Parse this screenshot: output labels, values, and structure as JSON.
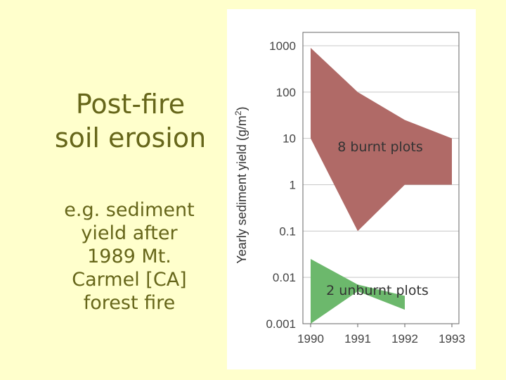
{
  "slide": {
    "title_lines": [
      "Post-fire",
      "soil erosion"
    ],
    "subtitle_lines": [
      "e.g. sediment",
      "yield after",
      "1989 Mt.",
      "Carmel  [CA]",
      "forest fire"
    ]
  },
  "colors": {
    "background": "#ffffcc",
    "text": "#66661a",
    "burnt": "#b06a67",
    "unburnt": "#6cb86c",
    "panel": "#ffffff"
  },
  "chart_data": {
    "type": "area",
    "x_ticks": [
      "1990",
      "1991",
      "1992",
      "1993"
    ],
    "y_ticks": [
      "1000",
      "100",
      "10",
      "1",
      "0.1",
      "0.01",
      "0.001"
    ],
    "ylabel_main": "Yearly sediment yield (g/m",
    "ylabel_sup": "2",
    "ylabel_close": ")",
    "y_scale": "log",
    "ylim": [
      0.001,
      3000
    ],
    "xlim": [
      1990,
      1993
    ],
    "grid": true,
    "series": [
      {
        "name": "8 burnt plots",
        "upper": [
          [
            1990,
            900
          ],
          [
            1991,
            100
          ],
          [
            1992,
            25
          ],
          [
            1993,
            10
          ]
        ],
        "lower": [
          [
            1990,
            10
          ],
          [
            1991,
            0.1
          ],
          [
            1992,
            1
          ],
          [
            1993,
            1
          ]
        ]
      },
      {
        "name": "2 unburnt plots",
        "upper": [
          [
            1990,
            0.025
          ],
          [
            1991,
            0.007
          ],
          [
            1992,
            0.004
          ]
        ],
        "lower": [
          [
            1990,
            0.001
          ],
          [
            1991,
            0.005
          ],
          [
            1992,
            0.002
          ]
        ]
      }
    ]
  }
}
